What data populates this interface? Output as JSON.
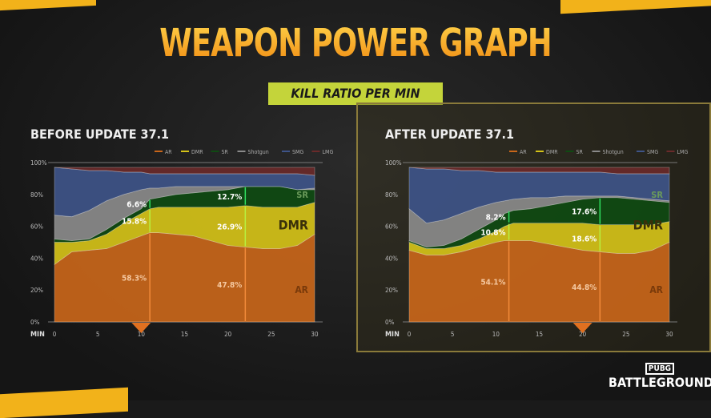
{
  "title": "WEAPON POWER GRAPH",
  "subtitle": "KILL RATIO PER MIN",
  "logo": {
    "top": "PUBG",
    "bottom": "BATTLEGROUNDS"
  },
  "colors": {
    "DMR": "#d4c218",
    "AR": "#c8661a",
    "SR": "#0f4a12",
    "Shotgun": "#8a8a8a",
    "SMG": "#3e5488",
    "LMG": "#6a2a2a",
    "accent": "#f5a623"
  },
  "chart_data": [
    {
      "type": "area",
      "stacked": true,
      "title": "BEFORE UPDATE 37.1",
      "xlabel": "MIN",
      "xlim": [
        0,
        30
      ],
      "ylim": [
        0,
        100
      ],
      "xticks": [
        "0",
        "5",
        "10",
        "15",
        "20",
        "25",
        "30"
      ],
      "yticks": [
        "0%",
        "20%",
        "40%",
        "60%",
        "80%",
        "100%"
      ],
      "legend": "top-right",
      "x": [
        0,
        2,
        4,
        6,
        8,
        10,
        11,
        12,
        14,
        16,
        18,
        20,
        22,
        24,
        26,
        28,
        30
      ],
      "series": [
        {
          "name": "AR",
          "values": [
            36,
            44,
            45,
            46,
            50,
            54,
            56,
            56,
            55,
            54,
            51,
            48,
            47,
            46,
            46,
            48,
            55
          ]
        },
        {
          "name": "DMR",
          "values": [
            14,
            6,
            6,
            9,
            12,
            14,
            15,
            16,
            17,
            18,
            21,
            24,
            26,
            26,
            26,
            24,
            20
          ]
        },
        {
          "name": "SR",
          "values": [
            2,
            1,
            1,
            3,
            3,
            3,
            6,
            6,
            8,
            9,
            10,
            11,
            12,
            13,
            13,
            11,
            8
          ]
        },
        {
          "name": "Shotgun",
          "values": [
            15,
            15,
            18,
            18,
            15,
            12,
            7,
            6,
            5,
            4,
            3,
            2,
            0,
            0,
            0,
            0,
            1
          ]
        },
        {
          "name": "SMG",
          "values": [
            30,
            30,
            25,
            19,
            14,
            11,
            9,
            9,
            8,
            8,
            8,
            8,
            8,
            8,
            8,
            10,
            8
          ]
        },
        {
          "name": "LMG",
          "values": [
            0,
            1,
            2,
            2,
            3,
            3,
            4,
            4,
            4,
            4,
            4,
            4,
            4,
            4,
            4,
            4,
            5
          ]
        }
      ],
      "area_labels": [
        "AR",
        "DMR",
        "SR"
      ],
      "annotations": [
        {
          "x": 11,
          "labels": [
            "58.3%",
            "15.8%",
            "6.6%"
          ]
        },
        {
          "x": 22,
          "labels": [
            "47.8%",
            "26.9%",
            "12.7%"
          ]
        }
      ],
      "marker_x": 10
    },
    {
      "type": "area",
      "stacked": true,
      "title": "AFTER UPDATE 37.1",
      "xlabel": "MIN",
      "xlim": [
        0,
        30
      ],
      "ylim": [
        0,
        100
      ],
      "xticks": [
        "0",
        "5",
        "10",
        "15",
        "20",
        "25",
        "30"
      ],
      "yticks": [
        "0%",
        "20%",
        "40%",
        "60%",
        "80%",
        "100%"
      ],
      "legend": "top-right",
      "x": [
        0,
        2,
        4,
        6,
        8,
        10,
        11,
        12,
        14,
        16,
        18,
        20,
        22,
        24,
        26,
        28,
        30
      ],
      "series": [
        {
          "name": "AR",
          "values": [
            45,
            42,
            42,
            44,
            47,
            50,
            51,
            51,
            51,
            49,
            47,
            45,
            44,
            43,
            43,
            45,
            50
          ]
        },
        {
          "name": "DMR",
          "values": [
            5,
            4,
            4,
            4,
            5,
            7,
            9,
            11,
            11,
            13,
            15,
            17,
            17,
            18,
            18,
            16,
            13
          ]
        },
        {
          "name": "SR",
          "values": [
            1,
            1,
            2,
            4,
            6,
            7,
            8,
            8,
            9,
            11,
            13,
            15,
            17,
            17,
            16,
            15,
            12
          ]
        },
        {
          "name": "Shotgun",
          "values": [
            20,
            15,
            16,
            16,
            14,
            11,
            8,
            7,
            7,
            5,
            4,
            2,
            1,
            1,
            1,
            1,
            1
          ]
        },
        {
          "name": "SMG",
          "values": [
            26,
            34,
            32,
            27,
            23,
            19,
            18,
            17,
            16,
            16,
            15,
            15,
            15,
            14,
            15,
            16,
            17
          ]
        },
        {
          "name": "LMG",
          "values": [
            0,
            1,
            1,
            2,
            2,
            3,
            3,
            3,
            3,
            3,
            3,
            3,
            3,
            4,
            4,
            4,
            4
          ]
        }
      ],
      "area_labels": [
        "AR",
        "DMR",
        "SR"
      ],
      "annotations": [
        {
          "x": 11.5,
          "labels": [
            "54.1%",
            "10.8%",
            "8.2%"
          ]
        },
        {
          "x": 22,
          "labels": [
            "44.8%",
            "18.6%",
            "17.6%"
          ]
        }
      ],
      "marker_x": 20
    }
  ]
}
